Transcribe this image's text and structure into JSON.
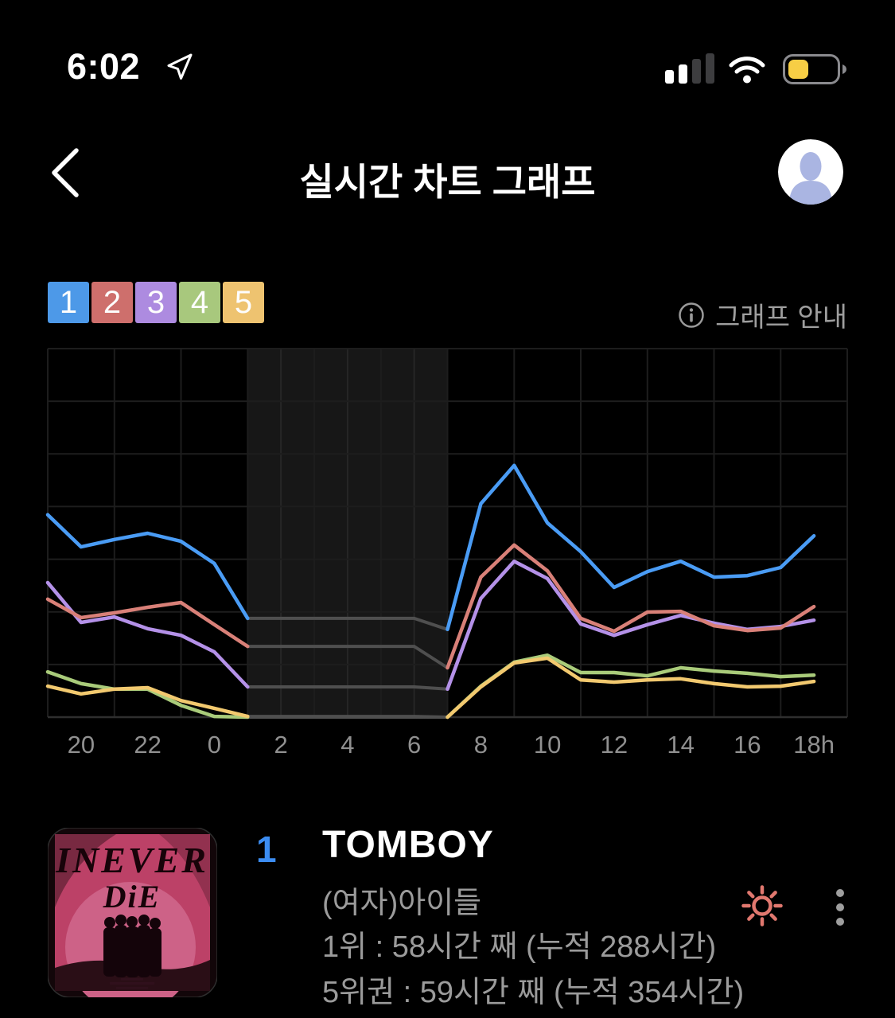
{
  "status_bar": {
    "time": "6:02"
  },
  "header": {
    "title": "실시간 차트 그래프"
  },
  "legend": {
    "ranks": [
      {
        "label": "1",
        "color": "#4D99E8"
      },
      {
        "label": "2",
        "color": "#CE6F6C"
      },
      {
        "label": "3",
        "color": "#AD8BE0"
      },
      {
        "label": "4",
        "color": "#A8C87D"
      },
      {
        "label": "5",
        "color": "#EEC370"
      }
    ],
    "info_label": "그래프 안내"
  },
  "chart_data": {
    "type": "line",
    "title": "실시간 차트 그래프 (rank 1-5 hourly trend)",
    "x_unit": "hour",
    "hours": [
      19,
      20,
      21,
      22,
      23,
      0,
      1,
      2,
      3,
      4,
      5,
      6,
      7,
      8,
      9,
      10,
      11,
      12,
      13,
      14,
      15,
      16,
      17,
      18
    ],
    "tick_labels": [
      "20",
      "22",
      "0",
      "2",
      "4",
      "6",
      "8",
      "10",
      "12",
      "14",
      "16",
      "18h"
    ],
    "ylabel": "",
    "ylim": [
      0,
      100
    ],
    "note": "no y-axis labels shown; values are % of plot height from bottom; chart frozen (gray) between 01h and 07h",
    "freeze": {
      "start_index": 6,
      "end_index": 12
    },
    "frozen_color": "#4f4f4f",
    "grid": {
      "bg": "#000000",
      "shade": "#171717",
      "line": "#1d1d1d",
      "shade_line": "#262626",
      "baseline": "#2e2e2e",
      "tick_color": "#909090"
    },
    "series": [
      {
        "name": "1",
        "color": "#4A9CF5",
        "values": [
          54.9,
          46.2,
          48.2,
          49.9,
          47.7,
          41.7,
          26.8,
          26.8,
          26.8,
          26.8,
          26.8,
          26.8,
          23.8,
          57.9,
          68.3,
          52.7,
          44.9,
          35.2,
          39.5,
          42.3,
          38.0,
          38.4,
          40.6,
          49.2
        ]
      },
      {
        "name": "2",
        "color": "#D98078",
        "values": [
          32.0,
          27.0,
          28.3,
          29.8,
          31.1,
          25.1,
          19.2,
          19.2,
          19.2,
          19.2,
          19.2,
          19.2,
          13.4,
          38.0,
          46.7,
          39.7,
          26.8,
          23.3,
          28.5,
          28.7,
          24.8,
          23.5,
          24.2,
          30.0
        ]
      },
      {
        "name": "3",
        "color": "#B491E8",
        "values": [
          36.5,
          25.7,
          27.2,
          24.0,
          22.2,
          17.7,
          8.2,
          8.2,
          8.2,
          8.2,
          8.2,
          8.2,
          7.6,
          32.2,
          42.3,
          37.6,
          25.3,
          22.2,
          25.1,
          27.6,
          25.5,
          23.8,
          24.6,
          26.3
        ]
      },
      {
        "name": "4",
        "color": "#A9CB7A",
        "values": [
          12.3,
          9.1,
          7.6,
          7.6,
          3.2,
          0.2,
          0.0,
          0.0,
          0.0,
          0.0,
          0.0,
          0.0,
          0.0,
          8.4,
          14.9,
          16.8,
          12.1,
          12.1,
          11.2,
          13.4,
          12.5,
          11.9,
          11.0,
          11.4
        ]
      },
      {
        "name": "5",
        "color": "#F2C96F",
        "values": [
          8.4,
          6.3,
          7.6,
          8.0,
          4.5,
          2.4,
          0.2,
          0.2,
          0.2,
          0.2,
          0.2,
          0.2,
          0.0,
          8.2,
          14.7,
          16.0,
          10.1,
          9.5,
          10.1,
          10.4,
          9.1,
          8.2,
          8.4,
          9.7
        ]
      }
    ]
  },
  "track": {
    "rank": "1",
    "rank_color": "#3C8DF2",
    "title": "TOMBOY",
    "artist": "(여자)아이들",
    "stat_line1": "1위 : 58시간 째 (누적 288시간)",
    "stat_line2": "5위권 : 59시간 째 (누적 354시간)",
    "sun_color": "#E1786F",
    "album": {
      "line1": "INEVER",
      "line2": "DiE"
    }
  }
}
